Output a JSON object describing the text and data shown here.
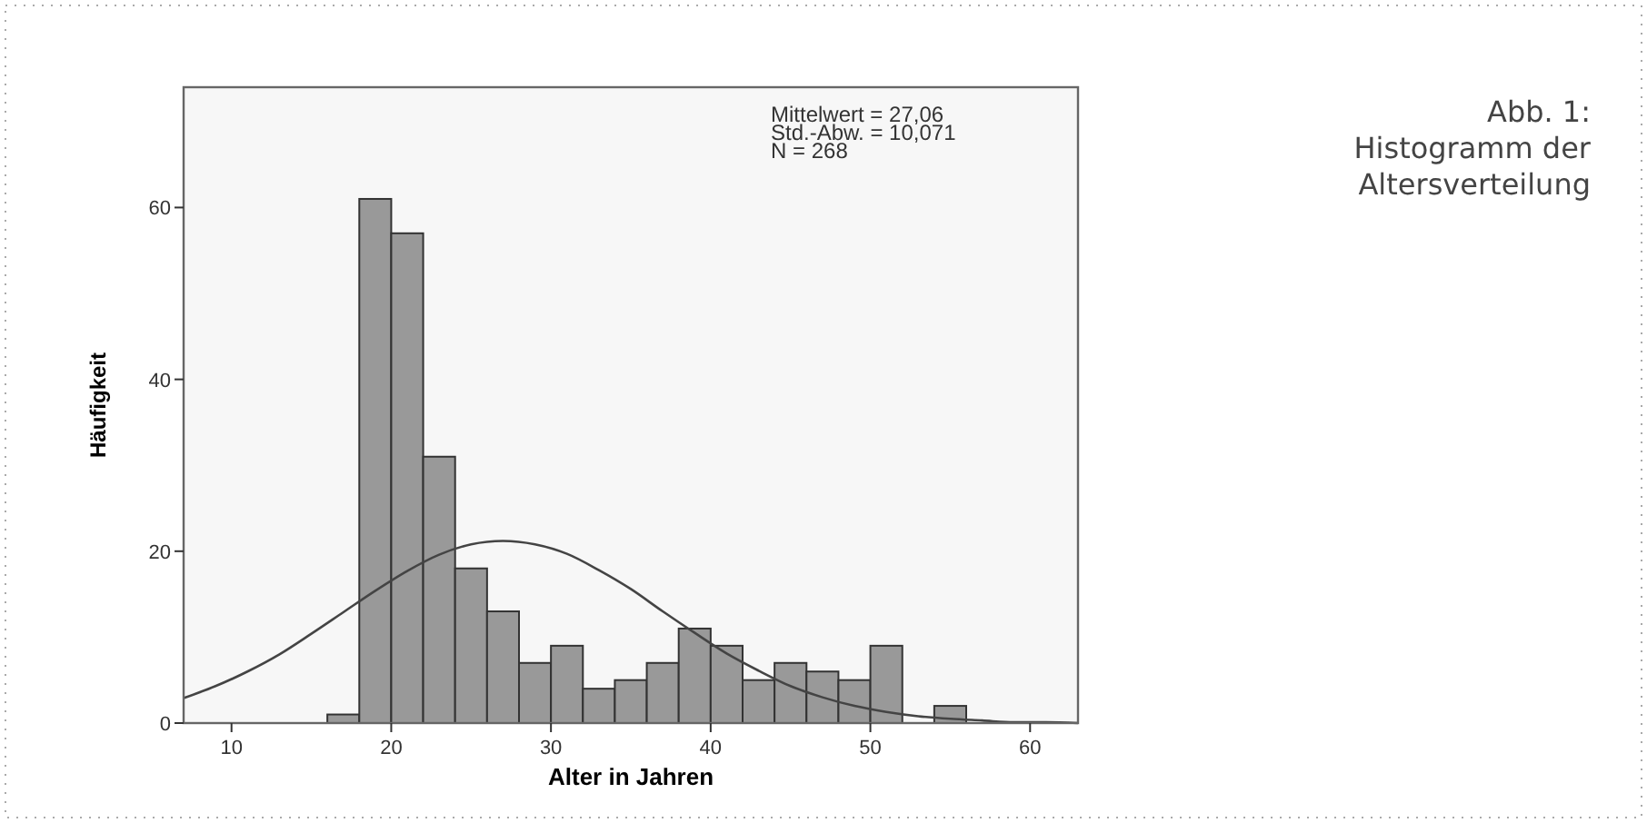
{
  "chart_data": {
    "type": "histogram",
    "title": "Abb. 1: Histogramm der Altersverteilung",
    "xlabel": "Alter in Jahren",
    "ylabel": "Häufigkeit",
    "annotations": [
      "Mittelwert = 27,06",
      "Std.-Abw. = 10,071",
      "N = 268"
    ],
    "bins": [
      16,
      18,
      20,
      22,
      24,
      26,
      28,
      30,
      32,
      34,
      36,
      38,
      40,
      42,
      44,
      46,
      48,
      50,
      52,
      54,
      56
    ],
    "series": [
      {
        "color": "#999999",
        "values": [
          1,
          61,
          57,
          31,
          18,
          13,
          7,
          9,
          4,
          5,
          7,
          11,
          9,
          5,
          7,
          6,
          5,
          9,
          0,
          2
        ]
      },
      {
        "type": "line",
        "color": "#444444",
        "x": [
          7,
          9,
          11,
          13,
          15,
          17,
          19,
          21,
          23,
          25,
          27,
          29,
          31,
          33,
          35,
          37,
          39,
          41,
          43,
          45,
          47,
          49,
          51,
          53,
          55,
          57,
          59,
          61,
          63
        ],
        "values": [
          2.9,
          4.3,
          6.0,
          8.0,
          10.4,
          12.9,
          15.4,
          17.7,
          19.6,
          20.8,
          21.2,
          20.8,
          19.7,
          17.8,
          15.6,
          13.0,
          10.5,
          8.1,
          6.1,
          4.3,
          3.0,
          2.0,
          1.3,
          0.8,
          0.5,
          0.3,
          0.1,
          0.1,
          0.0
        ]
      }
    ],
    "xlim": [
      7,
      63
    ],
    "xticks": [
      10,
      20,
      30,
      40,
      50,
      60
    ],
    "ylim": [
      0,
      74
    ],
    "yticks": [
      0,
      20,
      40,
      60
    ],
    "grid": false,
    "marker": "none",
    "line_style": "solid"
  }
}
